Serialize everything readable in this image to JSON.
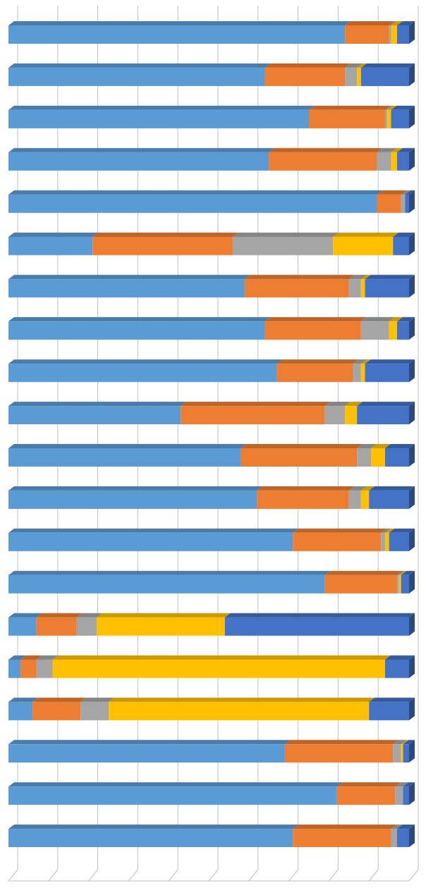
{
  "chart_data": {
    "type": "stacked-bar-3d",
    "orientation": "horizontal",
    "categories": [
      null,
      null,
      null,
      null,
      null,
      null,
      null,
      null,
      null,
      null,
      null,
      null,
      null,
      null,
      null,
      null,
      null,
      null,
      null,
      null
    ],
    "series": [
      {
        "color": "#5b9bd5",
        "values": [
          84,
          64,
          75,
          65,
          92,
          21,
          59,
          64,
          67,
          43,
          58,
          62,
          71,
          79,
          7,
          3,
          6,
          69,
          82,
          71
        ]
      },
      {
        "color": "#ed7d31",
        "values": [
          11,
          20,
          19,
          27,
          6,
          35,
          26,
          24,
          19,
          36,
          29,
          23,
          22,
          18,
          10,
          4,
          12,
          27,
          14.5,
          24.5
        ]
      },
      {
        "color": "#a5a5a5",
        "values": [
          0.5,
          3,
          0.5,
          3.5,
          1,
          25,
          3,
          7,
          2,
          5,
          3.5,
          3,
          1,
          0.5,
          5,
          4,
          7,
          2,
          2,
          1.5
        ]
      },
      {
        "color": "#ffc000",
        "values": [
          1.5,
          1,
          1,
          1.5,
          0,
          15,
          1,
          2,
          1,
          3,
          3.5,
          2,
          1,
          0.5,
          32,
          83,
          65,
          0.5,
          0,
          0
        ]
      },
      {
        "color": "#4472c4",
        "values": [
          3,
          12,
          4.5,
          3,
          1,
          4,
          11,
          3,
          11,
          13,
          6,
          10,
          5,
          2,
          46,
          6,
          10,
          1.5,
          1.5,
          3
        ]
      }
    ],
    "xlim": [
      0,
      100
    ],
    "xticks": [
      0,
      10,
      20,
      30,
      40,
      50,
      60,
      70,
      80,
      90,
      100
    ],
    "grid": true
  }
}
